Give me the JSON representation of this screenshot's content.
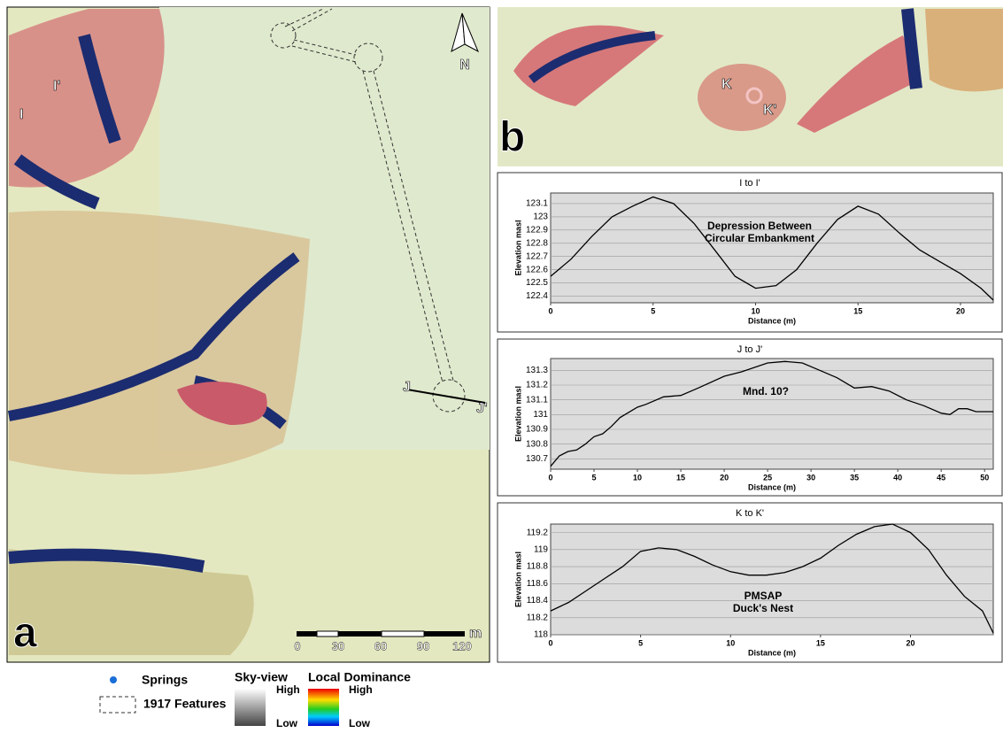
{
  "map_a": {
    "panel_label": "a",
    "labels": [
      "I",
      "I'",
      "J",
      "J'"
    ],
    "north": "N",
    "scale_labels": [
      "0",
      "30",
      "60",
      "90",
      "120"
    ],
    "scale_unit": "m"
  },
  "map_b": {
    "panel_label": "b",
    "labels": [
      "K",
      "K'"
    ]
  },
  "legend": {
    "springs": "Springs",
    "features": "1917 Features",
    "skyview": "Sky-view",
    "skyview_high": "High",
    "skyview_low": "Low",
    "dominance": "Local Dominance",
    "dominance_high": "High",
    "dominance_low": "Low"
  },
  "chart_data": [
    {
      "type": "line",
      "title": "I to I'",
      "x_label": "Distance (m)",
      "y_label": "Elevation masl",
      "annotation": [
        "Depression Between",
        "Circular Embankment"
      ],
      "color": "#000000",
      "grid": true,
      "x": [
        0,
        1,
        2,
        3,
        4,
        5,
        6,
        7,
        8,
        9,
        10,
        11,
        12,
        13,
        14,
        15,
        16,
        17,
        18,
        19,
        20,
        21,
        21.6
      ],
      "values": [
        122.55,
        122.68,
        122.85,
        123.0,
        123.08,
        123.15,
        123.1,
        122.95,
        122.75,
        122.55,
        122.46,
        122.48,
        122.6,
        122.8,
        122.98,
        123.08,
        123.02,
        122.88,
        122.75,
        122.66,
        122.57,
        122.46,
        122.37
      ],
      "xlim": [
        0,
        21.6
      ],
      "xticks": [
        0,
        5,
        10,
        15,
        20
      ],
      "ylim": [
        122.35,
        123.18
      ],
      "yticks": [
        122.4,
        122.5,
        122.6,
        122.7,
        122.8,
        122.9,
        123,
        123.1
      ]
    },
    {
      "type": "line",
      "title": "J to J'",
      "x_label": "Distance (m)",
      "y_label": "Elevation masl",
      "annotation": [
        "Mnd. 10?"
      ],
      "color": "#000000",
      "grid": true,
      "x": [
        0,
        1,
        2,
        3,
        4,
        5,
        6,
        7,
        8,
        10,
        11,
        13,
        15,
        17,
        20,
        22,
        25,
        27,
        29,
        31,
        33,
        35,
        37,
        39,
        41,
        43,
        45,
        46,
        47,
        48,
        49,
        51
      ],
      "values": [
        130.65,
        130.72,
        130.75,
        130.76,
        130.8,
        130.85,
        130.87,
        130.92,
        130.98,
        131.05,
        131.07,
        131.12,
        131.13,
        131.18,
        131.26,
        131.29,
        131.35,
        131.36,
        131.35,
        131.3,
        131.25,
        131.18,
        131.19,
        131.16,
        131.1,
        131.06,
        131.01,
        131.0,
        131.04,
        131.04,
        131.02,
        131.02
      ],
      "xlim": [
        0,
        51
      ],
      "xticks": [
        0,
        5,
        10,
        15,
        20,
        25,
        30,
        35,
        40,
        45,
        50
      ],
      "ylim": [
        130.63,
        131.38
      ],
      "yticks": [
        130.7,
        130.8,
        130.9,
        131,
        131.1,
        131.2,
        131.3
      ]
    },
    {
      "type": "line",
      "title": "K to K'",
      "x_label": "Distance (m)",
      "y_label": "Elevation masl",
      "annotation": [
        "PMSAP",
        "Duck's Nest"
      ],
      "color": "#000000",
      "grid": true,
      "x": [
        0,
        1,
        2,
        3,
        4,
        5,
        6,
        7,
        8,
        9,
        10,
        11,
        12,
        13,
        14,
        15,
        16,
        17,
        18,
        19,
        20,
        21,
        22,
        23,
        24,
        24.6
      ],
      "values": [
        118.28,
        118.38,
        118.52,
        118.66,
        118.8,
        118.98,
        119.02,
        119.0,
        118.92,
        118.82,
        118.74,
        118.7,
        118.7,
        118.73,
        118.8,
        118.9,
        119.05,
        119.18,
        119.27,
        119.3,
        119.2,
        119.0,
        118.7,
        118.45,
        118.28,
        118.02
      ],
      "xlim": [
        0,
        24.6
      ],
      "xticks": [
        0,
        5,
        10,
        15,
        20
      ],
      "ylim": [
        118,
        119.3
      ],
      "yticks": [
        118,
        118.2,
        118.4,
        118.6,
        118.8,
        119,
        119.2
      ]
    }
  ]
}
